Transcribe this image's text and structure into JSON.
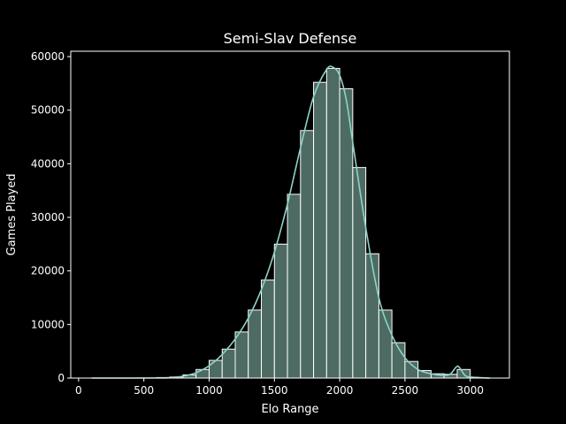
{
  "chart_data": {
    "type": "bar",
    "title": "Semi-Slav Defense",
    "xlabel": "Elo Range",
    "ylabel": "Games Played",
    "xlim": [
      -60,
      3300
    ],
    "ylim": [
      0,
      61000
    ],
    "x_ticks": [
      0,
      500,
      1000,
      1500,
      2000,
      2500,
      3000
    ],
    "x_tick_labels": [
      "0",
      "500",
      "1000",
      "1500",
      "2000",
      "2500",
      "3000"
    ],
    "y_ticks": [
      0,
      10000,
      20000,
      30000,
      40000,
      50000,
      60000
    ],
    "y_tick_labels": [
      "0",
      "10000",
      "20000",
      "30000",
      "40000",
      "50000",
      "60000"
    ],
    "grid": false,
    "legend": false,
    "bins": [
      {
        "x0": 100,
        "x1": 200,
        "value": 0
      },
      {
        "x0": 200,
        "x1": 300,
        "value": 0
      },
      {
        "x0": 300,
        "x1": 400,
        "value": 0
      },
      {
        "x0": 400,
        "x1": 500,
        "value": 0
      },
      {
        "x0": 500,
        "x1": 600,
        "value": 0
      },
      {
        "x0": 600,
        "x1": 700,
        "value": 100
      },
      {
        "x0": 700,
        "x1": 800,
        "value": 200
      },
      {
        "x0": 800,
        "x1": 900,
        "value": 600
      },
      {
        "x0": 900,
        "x1": 1000,
        "value": 1600
      },
      {
        "x0": 1000,
        "x1": 1100,
        "value": 3300
      },
      {
        "x0": 1100,
        "x1": 1200,
        "value": 5400
      },
      {
        "x0": 1200,
        "x1": 1300,
        "value": 8600
      },
      {
        "x0": 1300,
        "x1": 1400,
        "value": 12700
      },
      {
        "x0": 1400,
        "x1": 1500,
        "value": 18300
      },
      {
        "x0": 1500,
        "x1": 1600,
        "value": 25000
      },
      {
        "x0": 1600,
        "x1": 1700,
        "value": 34300
      },
      {
        "x0": 1700,
        "x1": 1800,
        "value": 46200
      },
      {
        "x0": 1800,
        "x1": 1900,
        "value": 55200
      },
      {
        "x0": 1900,
        "x1": 2000,
        "value": 57800
      },
      {
        "x0": 2000,
        "x1": 2100,
        "value": 54000
      },
      {
        "x0": 2100,
        "x1": 2200,
        "value": 39300
      },
      {
        "x0": 2200,
        "x1": 2300,
        "value": 23200
      },
      {
        "x0": 2300,
        "x1": 2400,
        "value": 12700
      },
      {
        "x0": 2400,
        "x1": 2500,
        "value": 6600
      },
      {
        "x0": 2500,
        "x1": 2600,
        "value": 3100
      },
      {
        "x0": 2600,
        "x1": 2700,
        "value": 1400
      },
      {
        "x0": 2700,
        "x1": 2800,
        "value": 800
      },
      {
        "x0": 2800,
        "x1": 2900,
        "value": 700
      },
      {
        "x0": 2900,
        "x1": 3000,
        "value": 1600
      },
      {
        "x0": 3000,
        "x1": 3100,
        "value": 0
      }
    ],
    "kde": [
      [
        100,
        0
      ],
      [
        400,
        0
      ],
      [
        600,
        20
      ],
      [
        700,
        80
      ],
      [
        800,
        350
      ],
      [
        900,
        1000
      ],
      [
        1000,
        2300
      ],
      [
        1100,
        4400
      ],
      [
        1200,
        7300
      ],
      [
        1300,
        11200
      ],
      [
        1400,
        16500
      ],
      [
        1500,
        23500
      ],
      [
        1600,
        32500
      ],
      [
        1700,
        43000
      ],
      [
        1800,
        52500
      ],
      [
        1900,
        57600
      ],
      [
        1950,
        58000
      ],
      [
        2000,
        56500
      ],
      [
        2050,
        52000
      ],
      [
        2100,
        44000
      ],
      [
        2200,
        28000
      ],
      [
        2300,
        15000
      ],
      [
        2400,
        8000
      ],
      [
        2500,
        3800
      ],
      [
        2600,
        1600
      ],
      [
        2700,
        800
      ],
      [
        2800,
        500
      ],
      [
        2850,
        800
      ],
      [
        2900,
        2200
      ],
      [
        2930,
        1500
      ],
      [
        2960,
        500
      ],
      [
        3000,
        200
      ],
      [
        3150,
        0
      ]
    ],
    "colors": {
      "background": "#000000",
      "bar_fill": "#4d6b63",
      "bar_edge": "#ffffff",
      "kde_line": "#8dd3c7",
      "axis": "#ffffff"
    }
  }
}
